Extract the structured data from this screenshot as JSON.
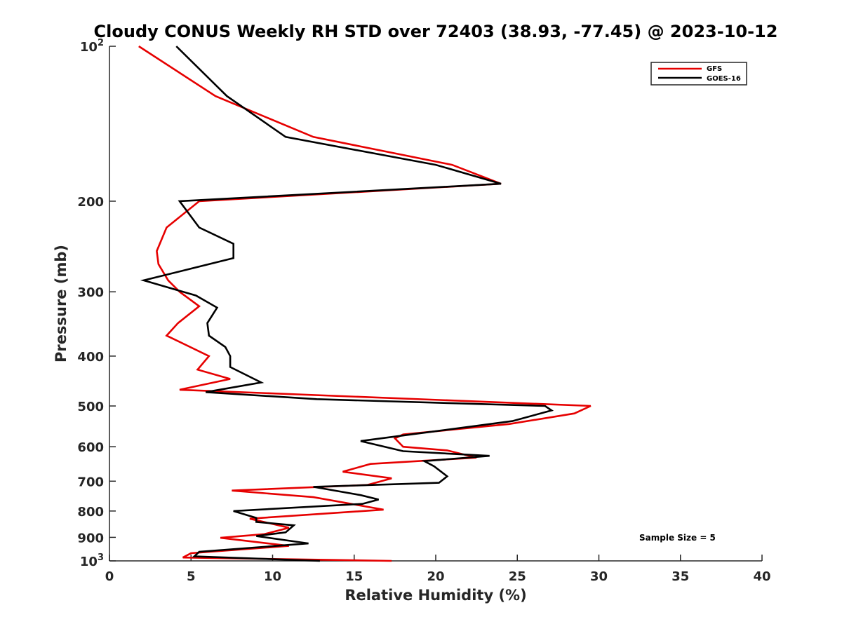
{
  "chart_data": {
    "type": "line",
    "title": "Cloudy CONUS Weekly RH STD over 72403 (38.93, -77.45) @ 2023-10-12",
    "xlabel": "Relative Humidity (%)",
    "ylabel": "Pressure (mb)",
    "xlim": [
      0,
      40
    ],
    "ylim": [
      100,
      1000
    ],
    "y_scale": "log",
    "y_reversed": true,
    "x_ticks": [
      "0",
      "5",
      "10",
      "15",
      "20",
      "25",
      "30",
      "35",
      "40"
    ],
    "y_ticks": [
      {
        "value": 100,
        "base": "10",
        "exp": "2"
      },
      {
        "value": 200,
        "label": "200"
      },
      {
        "value": 300,
        "label": "300"
      },
      {
        "value": 400,
        "label": "400"
      },
      {
        "value": 500,
        "label": "500"
      },
      {
        "value": 600,
        "label": "600"
      },
      {
        "value": 700,
        "label": "700"
      },
      {
        "value": 800,
        "label": "800"
      },
      {
        "value": 900,
        "label": "900"
      },
      {
        "value": 1000,
        "base": "10",
        "exp": "3"
      }
    ],
    "grid": false,
    "legend_position": "top-right",
    "annotation": "Sample Size = 5",
    "series": [
      {
        "name": "GFS",
        "color": "#e60000",
        "points": [
          [
            1.8,
            100
          ],
          [
            6.5,
            125
          ],
          [
            12.5,
            150
          ],
          [
            21.0,
            170
          ],
          [
            24.0,
            185
          ],
          [
            5.5,
            200
          ],
          [
            3.5,
            225
          ],
          [
            2.9,
            250
          ],
          [
            3.0,
            265
          ],
          [
            3.6,
            285
          ],
          [
            4.3,
            300
          ],
          [
            5.5,
            320
          ],
          [
            4.2,
            345
          ],
          [
            3.5,
            365
          ],
          [
            6.1,
            400
          ],
          [
            5.4,
            425
          ],
          [
            7.4,
            443
          ],
          [
            4.3,
            465
          ],
          [
            29.5,
            500
          ],
          [
            28.5,
            517
          ],
          [
            24.5,
            542
          ],
          [
            18.0,
            568
          ],
          [
            17.5,
            578
          ],
          [
            18.0,
            600
          ],
          [
            20.7,
            610
          ],
          [
            22.5,
            630
          ],
          [
            16.0,
            648
          ],
          [
            14.3,
            671
          ],
          [
            17.3,
            691
          ],
          [
            15.8,
            712
          ],
          [
            7.5,
            730
          ],
          [
            12.5,
            752
          ],
          [
            16.8,
            795
          ],
          [
            8.6,
            828
          ],
          [
            11.0,
            862
          ],
          [
            9.5,
            887
          ],
          [
            6.8,
            902
          ],
          [
            11.0,
            935
          ],
          [
            5.0,
            966
          ],
          [
            4.5,
            985
          ],
          [
            17.3,
            1000
          ]
        ]
      },
      {
        "name": "GOES-16",
        "color": "#000000",
        "points": [
          [
            4.1,
            100
          ],
          [
            7.2,
            125
          ],
          [
            10.8,
            150
          ],
          [
            20.0,
            170
          ],
          [
            24.0,
            185
          ],
          [
            4.3,
            200
          ],
          [
            5.5,
            225
          ],
          [
            7.6,
            242
          ],
          [
            7.6,
            258
          ],
          [
            2.1,
            285
          ],
          [
            5.3,
            305
          ],
          [
            6.6,
            322
          ],
          [
            6.0,
            345
          ],
          [
            6.1,
            365
          ],
          [
            7.1,
            384
          ],
          [
            7.4,
            400
          ],
          [
            7.4,
            420
          ],
          [
            9.3,
            450
          ],
          [
            5.9,
            470
          ],
          [
            12.7,
            485
          ],
          [
            26.7,
            500
          ],
          [
            27.1,
            510
          ],
          [
            24.7,
            535
          ],
          [
            17.2,
            575
          ],
          [
            15.4,
            585
          ],
          [
            18.0,
            612
          ],
          [
            23.3,
            625
          ],
          [
            19.3,
            640
          ],
          [
            19.9,
            655
          ],
          [
            20.7,
            685
          ],
          [
            20.2,
            705
          ],
          [
            12.5,
            718
          ],
          [
            15.4,
            745
          ],
          [
            16.5,
            760
          ],
          [
            15.5,
            775
          ],
          [
            7.6,
            800
          ],
          [
            9.0,
            825
          ],
          [
            9.0,
            840
          ],
          [
            11.3,
            853
          ],
          [
            10.8,
            880
          ],
          [
            9.0,
            895
          ],
          [
            12.2,
            925
          ],
          [
            5.5,
            960
          ],
          [
            5.2,
            980
          ],
          [
            12.9,
            1000
          ]
        ]
      }
    ]
  }
}
